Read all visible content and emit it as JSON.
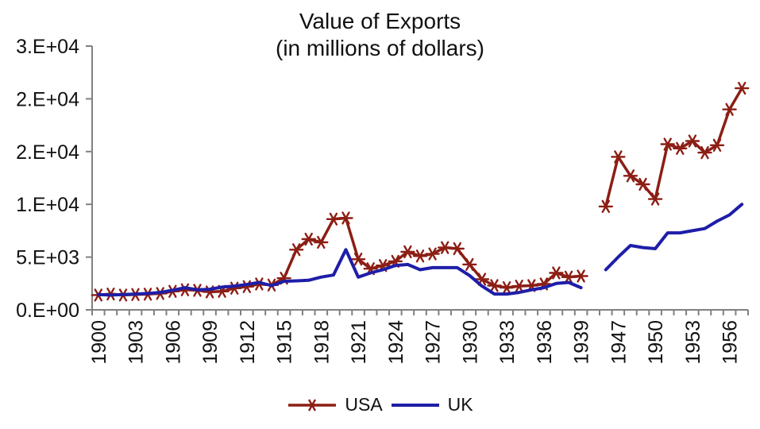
{
  "chart_data": {
    "type": "line",
    "title": "Value of Exports",
    "subtitle": "(in millions of dollars)",
    "xlabel": "",
    "ylabel": "",
    "grid": false,
    "legend_position": "bottom",
    "y_axis": {
      "min": 0,
      "max": 25000,
      "tick_values": [
        0,
        5000,
        10000,
        15000,
        20000,
        25000
      ],
      "tick_labels": [
        "0.E+00",
        "5.E+03",
        "1.E+04",
        "2.E+04",
        "2.E+04",
        "3.E+04"
      ]
    },
    "x_categories": [
      1900,
      1901,
      1902,
      1903,
      1904,
      1905,
      1906,
      1907,
      1908,
      1909,
      1910,
      1911,
      1912,
      1913,
      1914,
      1915,
      1916,
      1917,
      1918,
      1919,
      1920,
      1921,
      1922,
      1923,
      1924,
      1925,
      1926,
      1927,
      1928,
      1929,
      1930,
      1931,
      1932,
      1933,
      1934,
      1935,
      1936,
      1937,
      1938,
      1939,
      1945,
      1946,
      1947,
      1948,
      1949,
      1950,
      1951,
      1952,
      1953,
      1954,
      1955,
      1956,
      1957
    ],
    "x_tick_labels_shown": [
      "1900",
      "1903",
      "1906",
      "1909",
      "1912",
      "1915",
      "1918",
      "1921",
      "1924",
      "1927",
      "1930",
      "1933",
      "1936",
      "1939",
      "1947",
      "1950",
      "1953",
      "1956"
    ],
    "series": [
      {
        "name": "USA",
        "color": "#8c1e14",
        "marker": "asterisk",
        "values": [
          1400,
          1500,
          1400,
          1450,
          1480,
          1550,
          1750,
          1900,
          1850,
          1700,
          1750,
          2050,
          2200,
          2450,
          2350,
          3000,
          5700,
          6700,
          6400,
          8600,
          8700,
          4800,
          3900,
          4200,
          4600,
          5500,
          5100,
          5300,
          5900,
          5800,
          4300,
          2900,
          2300,
          2100,
          2250,
          2300,
          2450,
          3500,
          3100,
          3200,
          null,
          9800,
          14500,
          12700,
          11900,
          10500,
          15700,
          15300,
          16000,
          14900,
          15600,
          19000,
          21000
        ]
      },
      {
        "name": "UK",
        "color": "#1e1ea8",
        "marker": "none",
        "values": [
          1450,
          1400,
          1450,
          1500,
          1550,
          1650,
          1850,
          2100,
          1900,
          1950,
          2150,
          2250,
          2400,
          2600,
          2300,
          2700,
          2750,
          2800,
          3100,
          3300,
          5700,
          3100,
          3500,
          3800,
          4200,
          4300,
          3800,
          4000,
          4000,
          4000,
          3250,
          2250,
          1500,
          1500,
          1650,
          1900,
          2100,
          2500,
          2600,
          2100,
          null,
          3800,
          5000,
          6100,
          5900,
          5800,
          7300,
          7300,
          7500,
          7700,
          8400,
          9000,
          10000
        ]
      }
    ],
    "axis_color": "#808080",
    "text_color": "#111111"
  }
}
